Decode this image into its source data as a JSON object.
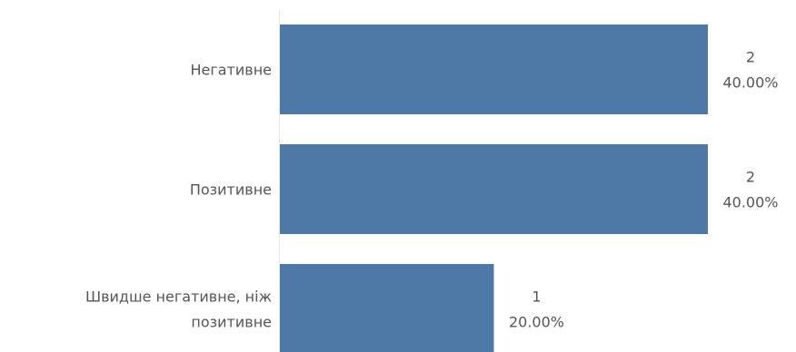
{
  "chart_data": {
    "type": "bar",
    "orientation": "horizontal",
    "categories": [
      [
        "Негативне"
      ],
      [
        "Позитивне"
      ],
      [
        "Швидше негативне, ніж",
        "позитивне"
      ]
    ],
    "values": [
      2,
      2,
      1
    ],
    "percents": [
      "40.00%",
      "40.00%",
      "20.00%"
    ],
    "xlim": [
      0,
      2
    ],
    "grid": false,
    "bar_color": "#4e79a7",
    "axis_color": "#e6e6e6"
  }
}
